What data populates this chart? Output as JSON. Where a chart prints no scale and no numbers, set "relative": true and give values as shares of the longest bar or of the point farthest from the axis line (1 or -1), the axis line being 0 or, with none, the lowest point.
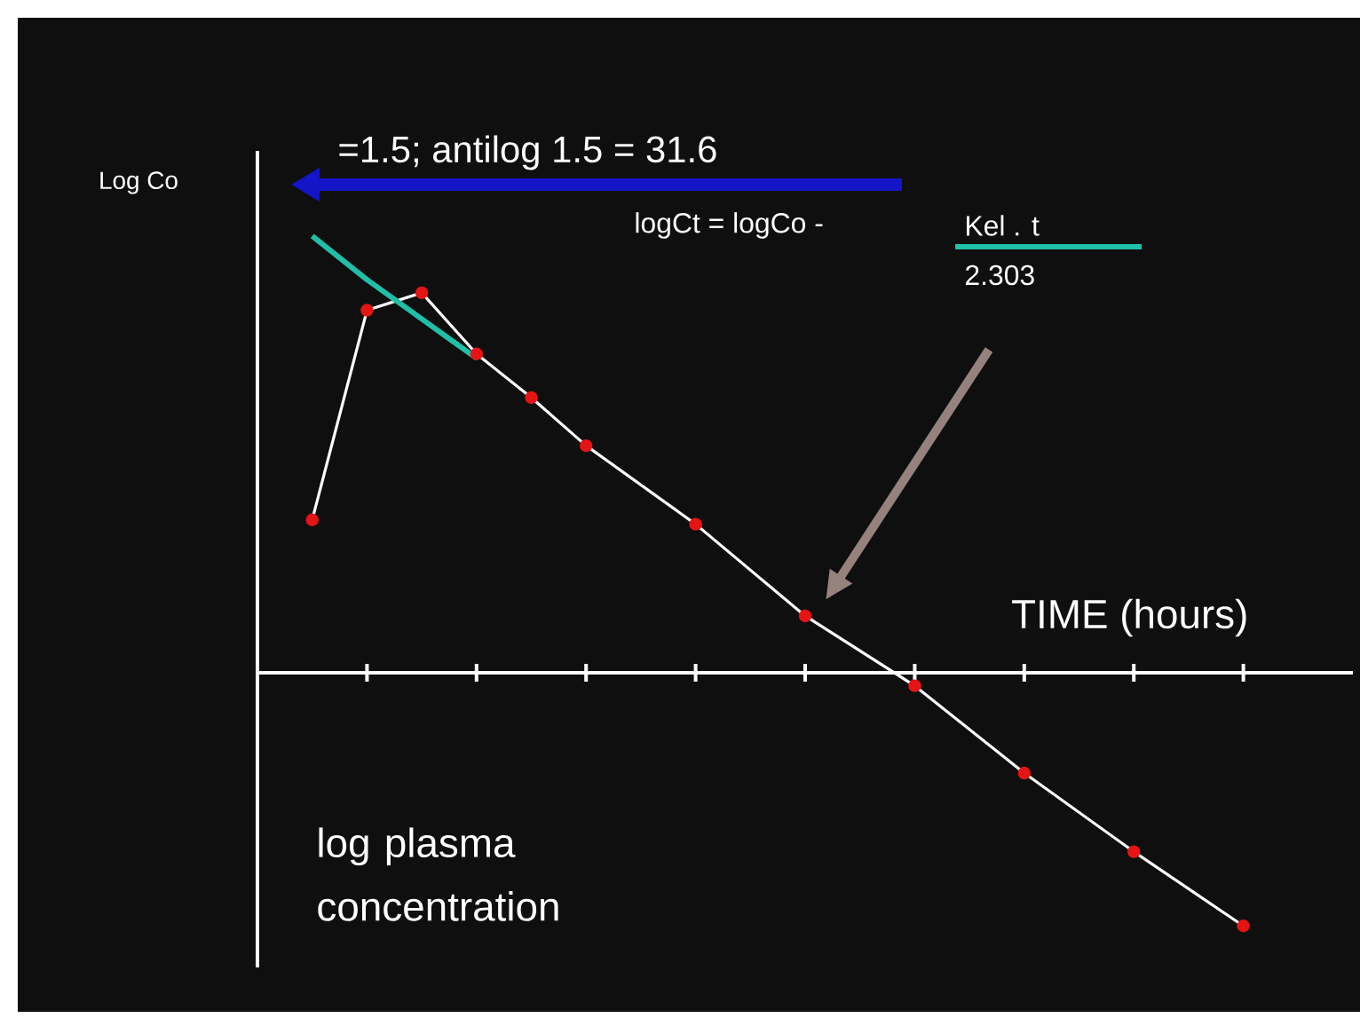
{
  "chart_data": {
    "type": "line",
    "relative": true,
    "xlabel": "TIME (hours)",
    "annotations": [
      "Log Co",
      "=1.5; antilog 1.5 = 31.6",
      "logCt  =  logCo -",
      "Kel .    t",
      "2.303",
      "log plasma concentration"
    ],
    "categories": [
      null,
      null,
      null,
      null,
      null,
      null,
      null,
      null,
      null,
      null,
      null,
      null,
      null,
      null,
      null,
      null,
      null,
      null
    ],
    "marker": "circle",
    "series": [
      {
        "color": "#ffffff",
        "values": [
          0.35,
          0.83,
          0.87,
          0.73,
          0.63,
          0.52,
          null,
          0.34,
          null,
          0.13,
          null,
          -0.03,
          null,
          -0.23,
          null,
          -0.41,
          null,
          -0.58
        ]
      },
      {
        "type": "line",
        "color": "#20c0a8",
        "marker": "none",
        "values": [
          1,
          0.9,
          0.81,
          0.72,
          null,
          null,
          null,
          null,
          null,
          null,
          null,
          null,
          null,
          null,
          null,
          null,
          null,
          null
        ]
      }
    ]
  }
}
